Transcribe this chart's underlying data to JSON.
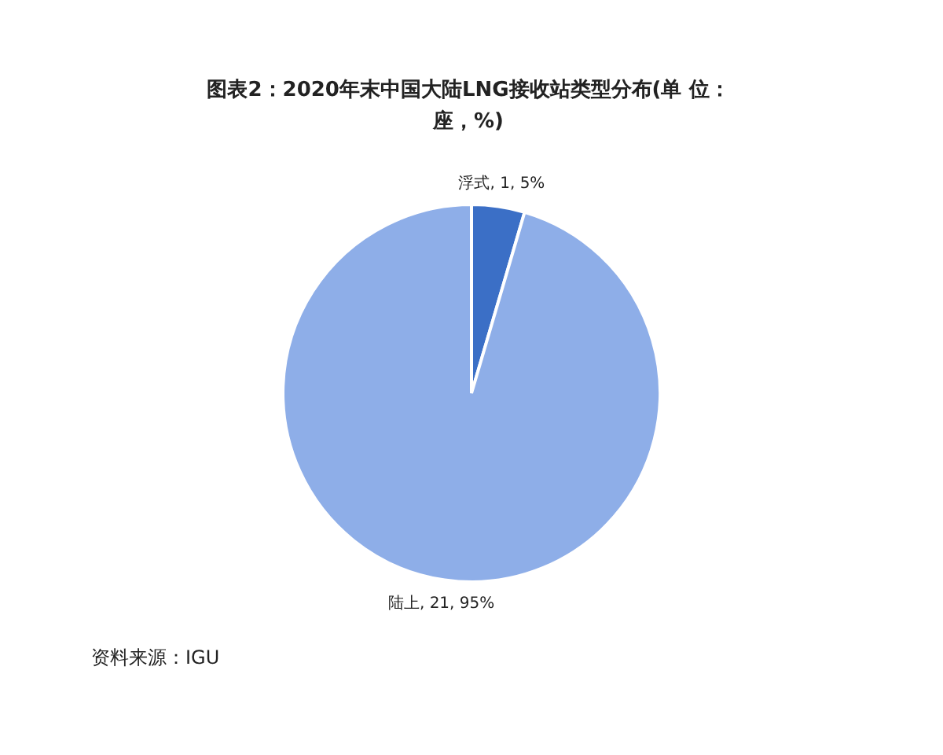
{
  "chart_data": {
    "type": "pie",
    "title": "图表2：2020年末中国大陆LNG接收站类型分布(单 位：座，%)",
    "categories": [
      "浮式",
      "陆上"
    ],
    "values": [
      1,
      21
    ],
    "colors": [
      "#3b6fc6",
      "#8eaee8"
    ],
    "value_labels": [
      "1, 5%",
      "21, 95%"
    ],
    "legend": false,
    "annotations": [
      "资料来源：IGU"
    ]
  }
}
